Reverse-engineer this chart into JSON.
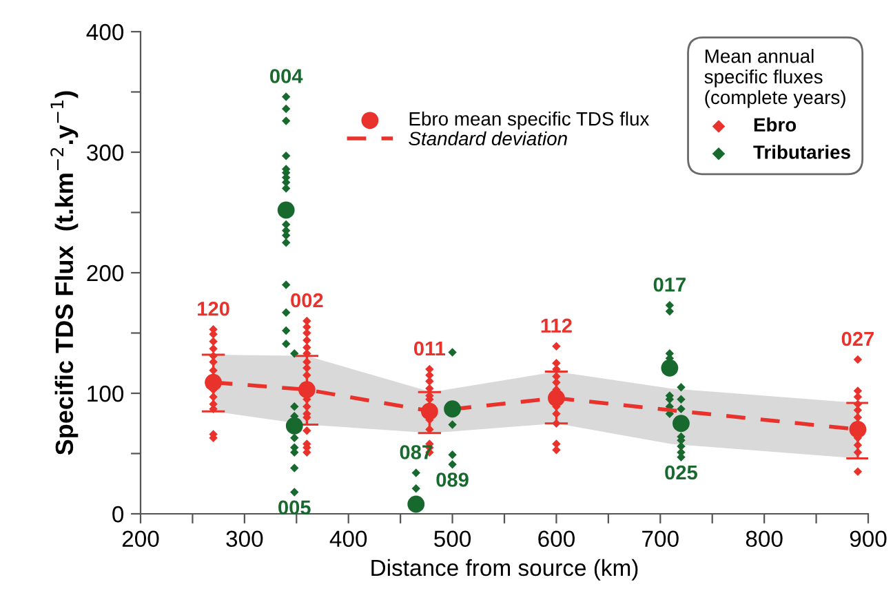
{
  "chart_data": {
    "type": "scatter",
    "xlabel": "Distance from source (km)",
    "ylabel": "Specific TDS Flux  (t.km$^{−2}$.y$^{−1}$)",
    "legend_title": "Mean annual\nspecific fluxes\n(complete years)",
    "legend": "top right",
    "grid": false,
    "marker": "diamond",
    "xlim": [
      200,
      900
    ],
    "ylim": [
      0,
      400
    ],
    "xticks": [
      200,
      {
        "value": 250,
        "label": null
      },
      300,
      {
        "value": 350,
        "label": null
      },
      400,
      {
        "value": 450,
        "label": null
      },
      500,
      {
        "value": 550,
        "label": null
      },
      600,
      {
        "value": 650,
        "label": null
      },
      700,
      {
        "value": 750,
        "label": null
      },
      800,
      {
        "value": 850,
        "label": null
      },
      900
    ],
    "yticks": [
      0,
      {
        "value": 50,
        "label": null
      },
      100,
      {
        "value": 150,
        "label": null
      },
      200,
      {
        "value": 250,
        "label": null
      },
      300,
      {
        "value": 350,
        "label": null
      },
      400
    ],
    "series": [
      {
        "type": "line",
        "name": "Standard deviation",
        "color": "#e8322b",
        "line_style": "dashed",
        "marker": "none",
        "x": [
          270,
          360,
          480,
          600,
          710,
          890
        ],
        "values": [
          109,
          103,
          85,
          96,
          86,
          70
        ],
        "lower": [
          85,
          74,
          67,
          75,
          58,
          46
        ],
        "upper": [
          132,
          131,
          101,
          118,
          104,
          92
        ]
      },
      {
        "name": "Ebro",
        "color": "#e8322b",
        "x": [
          270,
          270,
          270,
          270,
          270,
          270,
          270,
          270,
          270,
          270,
          270,
          270,
          270,
          360,
          360,
          360,
          360,
          360,
          360,
          360,
          360,
          360,
          360,
          360,
          360,
          360,
          360,
          360,
          360,
          360,
          478,
          478,
          478,
          478,
          478,
          478,
          478,
          478,
          478,
          478,
          478,
          600,
          600,
          600,
          600,
          600,
          600,
          600,
          600,
          600,
          600,
          600,
          890,
          890,
          890,
          890,
          890,
          890,
          890,
          890,
          890,
          890
        ],
        "values": [
          153,
          149,
          143,
          137,
          131,
          126,
          119,
          103,
          97,
          91,
          87,
          66,
          63,
          160,
          155,
          150,
          144,
          138,
          133,
          126,
          121,
          115,
          95,
          89,
          83,
          80,
          69,
          58,
          55,
          51,
          120,
          115,
          110,
          104,
          98,
          95,
          78,
          70,
          58,
          55,
          51,
          139,
          125,
          120,
          114,
          109,
          103,
          89,
          83,
          75,
          58,
          53,
          128,
          102,
          97,
          91,
          86,
          80,
          63,
          57,
          51,
          35
        ]
      },
      {
        "name": "Tributaries",
        "color": "#17692e",
        "x": [
          340,
          340,
          340,
          340,
          340,
          340,
          340,
          340,
          340,
          340,
          340,
          340,
          340,
          340,
          340,
          340,
          340,
          348,
          348,
          348,
          348,
          348,
          348,
          348,
          348,
          465,
          465,
          500,
          500,
          500,
          500,
          709,
          709,
          709,
          709,
          709,
          709,
          709,
          709,
          720,
          720,
          720,
          720,
          720,
          720,
          720,
          720
        ],
        "values": [
          346,
          336,
          326,
          297,
          286,
          283,
          279,
          275,
          270,
          240,
          235,
          231,
          225,
          190,
          167,
          152,
          141,
          133,
          89,
          81,
          63,
          55,
          51,
          38,
          18,
          34,
          21,
          134,
          74,
          49,
          41,
          173,
          168,
          133,
          129,
          98,
          95,
          89,
          83,
          105,
          95,
          87,
          64,
          61,
          56,
          51,
          47
        ]
      },
      {
        "name": "Ebro mean specific TDS flux",
        "color": "#e8322b",
        "marker": "circle",
        "x": [
          270,
          360,
          478,
          600,
          890
        ],
        "values": [
          109,
          103,
          85,
          96,
          70
        ],
        "errors": [
          [
            85,
            132
          ],
          [
            74,
            131
          ],
          [
            67,
            101
          ],
          [
            75,
            118
          ],
          [
            46,
            92
          ]
        ]
      },
      {
        "color": "#17692e",
        "marker": "circle",
        "x": [
          340,
          348,
          465,
          500,
          709,
          720
        ],
        "values": [
          252,
          73,
          8,
          87,
          121,
          75
        ]
      }
    ],
    "annotations": [
      {
        "text": "120",
        "x": 270,
        "y": 153
      },
      {
        "text": "002",
        "x": 360,
        "y": 160
      },
      {
        "text": "011",
        "x": 478,
        "y": 120
      },
      {
        "text": "112",
        "x": 600,
        "y": 139
      },
      {
        "text": "027",
        "x": 890,
        "y": 128
      },
      {
        "text": "004",
        "x": 340,
        "y": 346
      },
      {
        "text": "017",
        "x": 709,
        "y": 173
      },
      {
        "text": "005",
        "x": 348,
        "y": 18
      },
      {
        "text": "087",
        "x": 465,
        "y": 34
      },
      {
        "text": "089",
        "x": 500,
        "y": 41
      },
      {
        "text": "025",
        "x": 720,
        "y": 47
      }
    ]
  }
}
